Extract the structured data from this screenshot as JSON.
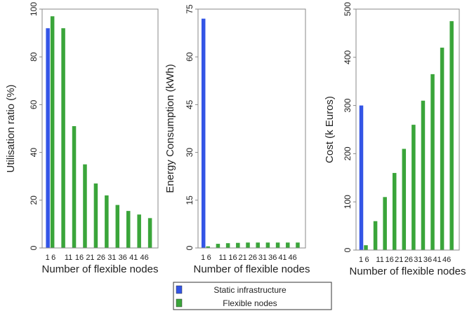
{
  "chart_data": [
    {
      "type": "bar",
      "xlabel": "Number of flexible nodes",
      "ylabel": "Utilisation ratio (%)",
      "ylim": [
        0,
        100
      ],
      "yticks": [
        0,
        20,
        40,
        60,
        80,
        100
      ],
      "x_tick_labels": [
        "1",
        "6",
        "11",
        "16",
        "21",
        "26",
        "31",
        "36",
        "41",
        "46"
      ],
      "series": [
        {
          "name": "Static infrastructure",
          "x": [
            1
          ],
          "values": [
            92
          ]
        },
        {
          "name": "Flexible nodes",
          "x": [
            1,
            6,
            11,
            16,
            21,
            26,
            31,
            36,
            41,
            46
          ],
          "values": [
            97,
            92,
            51,
            35,
            27,
            22,
            18,
            15.5,
            14,
            12.5
          ]
        }
      ]
    },
    {
      "type": "bar",
      "xlabel": "Number of flexible nodes",
      "ylabel": "Energy Consumption (kWh)",
      "ylim": [
        0,
        75
      ],
      "yticks": [
        0,
        15,
        30,
        45,
        60,
        75
      ],
      "x_tick_labels": [
        "1",
        "6",
        "11",
        "16",
        "21",
        "26",
        "31",
        "36",
        "41",
        "46"
      ],
      "series": [
        {
          "name": "Static infrastructure",
          "x": [
            1
          ],
          "values": [
            72
          ]
        },
        {
          "name": "Flexible nodes",
          "x": [
            1,
            6,
            11,
            16,
            21,
            26,
            31,
            36,
            41,
            46
          ],
          "values": [
            0.5,
            1.3,
            1.5,
            1.6,
            1.7,
            1.7,
            1.7,
            1.7,
            1.7,
            1.7
          ]
        }
      ]
    },
    {
      "type": "bar",
      "xlabel": "Number of flexible nodes",
      "ylabel": "Cost (k Euros)",
      "ylim": [
        0,
        500
      ],
      "yticks": [
        0,
        100,
        200,
        300,
        400,
        500
      ],
      "x_tick_labels": [
        "1",
        "6",
        "11",
        "16",
        "21",
        "26",
        "31",
        "36",
        "41",
        "46"
      ],
      "series": [
        {
          "name": "Static infrastructure",
          "x": [
            1
          ],
          "values": [
            300
          ]
        },
        {
          "name": "Flexible nodes",
          "x": [
            1,
            6,
            11,
            16,
            21,
            26,
            31,
            36,
            41,
            46
          ],
          "values": [
            10,
            60,
            110,
            160,
            210,
            260,
            310,
            365,
            420,
            475
          ]
        }
      ]
    }
  ],
  "legend": {
    "position": "bottom-center",
    "items": [
      {
        "label": "Static infrastructure",
        "color": "#3355e6"
      },
      {
        "label": "Flexible nodes",
        "color": "#3aa53a"
      }
    ]
  },
  "colors": {
    "static": "#3355e6",
    "flexible": "#3aa53a",
    "axis": "#888888"
  }
}
